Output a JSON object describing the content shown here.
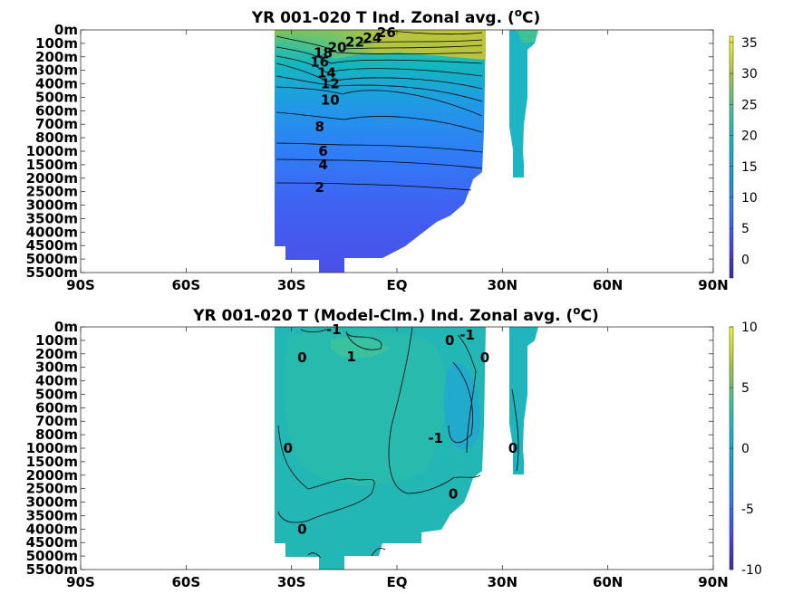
{
  "chart_data": [
    {
      "type": "heatmap",
      "title": "YR 001-020 T Ind. Zonal avg. (",
      "title_sup": "o",
      "title_tail": "C)",
      "x_ticks": [
        "90S",
        "60S",
        "30S",
        "EQ",
        "30N",
        "60N",
        "90N"
      ],
      "x_tick_values": [
        -90,
        -60,
        -30,
        0,
        30,
        60,
        90
      ],
      "xlim": [
        -90,
        90
      ],
      "y_ticks": [
        "0m",
        "100m",
        "200m",
        "300m",
        "400m",
        "500m",
        "600m",
        "700m",
        "800m",
        "1000m",
        "1500m",
        "2000m",
        "2500m",
        "3000m",
        "3500m",
        "4000m",
        "4500m",
        "5000m",
        "5500m"
      ],
      "y_tick_values": [
        0,
        100,
        200,
        300,
        400,
        500,
        600,
        700,
        800,
        1000,
        1500,
        2000,
        2500,
        3000,
        3500,
        4000,
        4500,
        5000,
        5500
      ],
      "colorbar": {
        "ticks": [
          "0",
          "5",
          "10",
          "15",
          "20",
          "25",
          "30",
          "35"
        ],
        "tick_values": [
          0,
          5,
          10,
          15,
          20,
          25,
          30,
          35
        ],
        "range": [
          -3,
          36
        ]
      },
      "contour_labels": [
        {
          "text": "26",
          "lat": -3,
          "depth": 20
        },
        {
          "text": "24",
          "lat": -7,
          "depth": 60
        },
        {
          "text": "22",
          "lat": -12,
          "depth": 90
        },
        {
          "text": "20",
          "lat": -17,
          "depth": 130
        },
        {
          "text": "18",
          "lat": -21,
          "depth": 170
        },
        {
          "text": "16",
          "lat": -22,
          "depth": 240
        },
        {
          "text": "14",
          "lat": -20,
          "depth": 320
        },
        {
          "text": "12",
          "lat": -19,
          "depth": 400
        },
        {
          "text": "10",
          "lat": -19,
          "depth": 520
        },
        {
          "text": "8",
          "lat": -22,
          "depth": 720
        },
        {
          "text": "6",
          "lat": -21,
          "depth": 1000
        },
        {
          "text": "4",
          "lat": -21,
          "depth": 1500
        },
        {
          "text": "2",
          "lat": -22,
          "depth": 2350
        }
      ]
    },
    {
      "type": "heatmap",
      "title": "YR 001-020 T (Model-Clm.) Ind. Zonal avg. (",
      "title_sup": "o",
      "title_tail": "C)",
      "x_ticks": [
        "90S",
        "60S",
        "30S",
        "EQ",
        "30N",
        "60N",
        "90N"
      ],
      "x_tick_values": [
        -90,
        -60,
        -30,
        0,
        30,
        60,
        90
      ],
      "xlim": [
        -90,
        90
      ],
      "y_ticks": [
        "0m",
        "100m",
        "200m",
        "300m",
        "400m",
        "500m",
        "600m",
        "700m",
        "800m",
        "1000m",
        "1500m",
        "2000m",
        "2500m",
        "3000m",
        "3500m",
        "4000m",
        "4500m",
        "5000m",
        "5500m"
      ],
      "y_tick_values": [
        0,
        100,
        200,
        300,
        400,
        500,
        600,
        700,
        800,
        1000,
        1500,
        2000,
        2500,
        3000,
        3500,
        4000,
        4500,
        5000,
        5500
      ],
      "colorbar": {
        "ticks": [
          "10",
          "5",
          "0",
          "-5",
          "-10"
        ],
        "tick_values": [
          10,
          5,
          0,
          -5,
          -10
        ],
        "range": [
          -10,
          10
        ]
      },
      "contour_labels": [
        {
          "text": "-1",
          "lat": -18,
          "depth": 20
        },
        {
          "text": "1",
          "lat": -13,
          "depth": 220
        },
        {
          "text": "0",
          "lat": -27,
          "depth": 230
        },
        {
          "text": "0",
          "lat": 15,
          "depth": 100
        },
        {
          "text": "-1",
          "lat": 20,
          "depth": 60
        },
        {
          "text": "0",
          "lat": 25,
          "depth": 230
        },
        {
          "text": "-1",
          "lat": 11,
          "depth": 850
        },
        {
          "text": "0",
          "lat": -31,
          "depth": 1000
        },
        {
          "text": "0",
          "lat": 33,
          "depth": 1000
        },
        {
          "text": "0",
          "lat": 16,
          "depth": 2700
        },
        {
          "text": "0",
          "lat": -27,
          "depth": 4000
        }
      ]
    }
  ]
}
